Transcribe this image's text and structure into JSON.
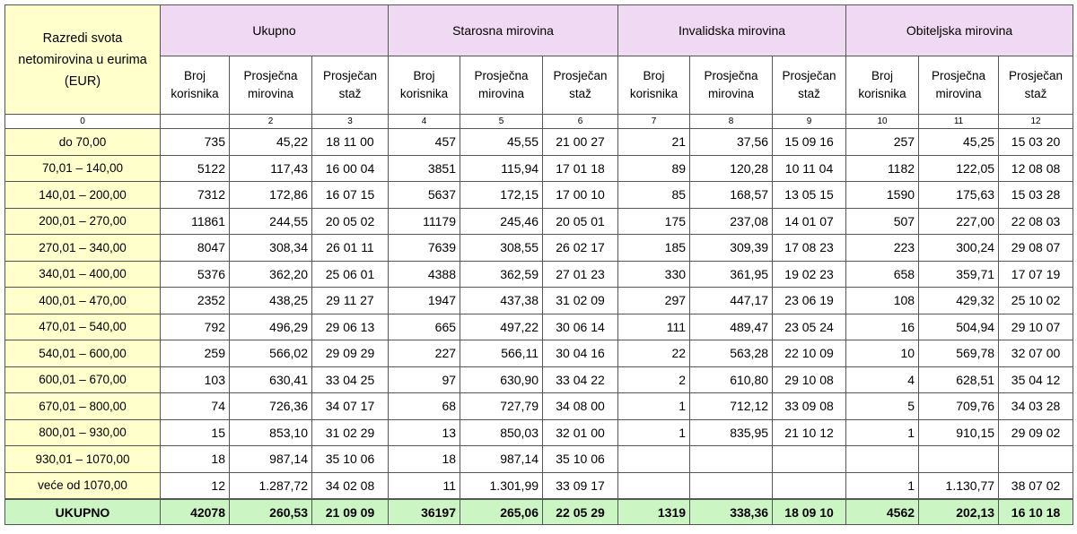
{
  "header": {
    "row_label": "Razredi svota netomirovina u eurima (EUR)",
    "groups": [
      "Ukupno",
      "Starosna mirovina",
      "Invalidska mirovina",
      "Obiteljska mirovina"
    ],
    "subheaders": [
      "Broj korisnika",
      "Prosječna mirovina",
      "Prosječan staž",
      "Broj korisnika",
      "Prosječna mirovina",
      "Prosječan staž",
      "Broj korisnika",
      "Prosječna mirovina",
      "Prosječan staž",
      "Broj korisnika",
      "Prosječna mirovina",
      "Prosječan staž"
    ]
  },
  "column_numbers": [
    0,
    null,
    2,
    3,
    4,
    5,
    6,
    7,
    8,
    9,
    10,
    11,
    12
  ],
  "rows": [
    {
      "class": "do 70,00",
      "cells": [
        735,
        "45,22",
        "18 11 00",
        457,
        "45,55",
        "21 00 27",
        21,
        "37,56",
        "15 09 16",
        257,
        "45,25",
        "15 03 20"
      ]
    },
    {
      "class": "70,01  –  140,00",
      "cells": [
        5122,
        "117,43",
        "16 00 04",
        3851,
        "115,94",
        "17 01 18",
        89,
        "120,28",
        "10 11 04",
        1182,
        "122,05",
        "12 08 08"
      ]
    },
    {
      "class": "140,01  –  200,00",
      "cells": [
        7312,
        "172,86",
        "16 07 15",
        5637,
        "172,15",
        "17 00 10",
        85,
        "168,57",
        "13 05 15",
        1590,
        "175,63",
        "15 03 28"
      ]
    },
    {
      "class": "200,01  –  270,00",
      "cells": [
        11861,
        "244,55",
        "20 05 02",
        11179,
        "245,46",
        "20 05 01",
        175,
        "237,08",
        "14 01 07",
        507,
        "227,00",
        "22 08 03"
      ]
    },
    {
      "class": "270,01  –  340,00",
      "cells": [
        8047,
        "308,34",
        "26 01 11",
        7639,
        "308,55",
        "26 02 17",
        185,
        "309,39",
        "17 08 23",
        223,
        "300,24",
        "29 08 07"
      ]
    },
    {
      "class": "340,01  –  400,00",
      "cells": [
        5376,
        "362,20",
        "25 06 01",
        4388,
        "362,59",
        "27 01 23",
        330,
        "361,95",
        "19 02 23",
        658,
        "359,71",
        "17 07 19"
      ]
    },
    {
      "class": "400,01  –  470,00",
      "cells": [
        2352,
        "438,25",
        "29 11 27",
        1947,
        "437,38",
        "31 02 09",
        297,
        "447,17",
        "23 06 19",
        108,
        "429,32",
        "25 10 02"
      ]
    },
    {
      "class": "470,01  –  540,00",
      "cells": [
        792,
        "496,29",
        "29 06 13",
        665,
        "497,22",
        "30 06 14",
        111,
        "489,47",
        "23 05 24",
        16,
        "504,94",
        "29 10 07"
      ]
    },
    {
      "class": "540,01  –  600,00",
      "cells": [
        259,
        "566,02",
        "29 09 29",
        227,
        "566,11",
        "30 04 16",
        22,
        "563,28",
        "22 10 09",
        10,
        "569,78",
        "32 07 00"
      ]
    },
    {
      "class": "600,01  –  670,00",
      "cells": [
        103,
        "630,41",
        "33 04 25",
        97,
        "630,90",
        "33 04 22",
        2,
        "610,80",
        "29 10 08",
        4,
        "628,51",
        "35 04 12"
      ]
    },
    {
      "class": "670,01  –  800,00",
      "cells": [
        74,
        "726,36",
        "34 07 17",
        68,
        "727,79",
        "34 08 00",
        1,
        "712,12",
        "33 09 08",
        5,
        "709,76",
        "34 03 28"
      ]
    },
    {
      "class": "800,01  –  930,00",
      "cells": [
        15,
        "853,10",
        "31 02 29",
        13,
        "850,03",
        "32 01 00",
        1,
        "835,95",
        "21 10 12",
        1,
        "910,15",
        "29 09 02"
      ]
    },
    {
      "class": "930,01  –  1070,00",
      "cells": [
        18,
        "987,14",
        "35 10 06",
        18,
        "987,14",
        "35 10 06",
        null,
        null,
        null,
        null,
        null,
        null
      ]
    },
    {
      "class": "veće od 1070,00",
      "cells": [
        12,
        "1.287,72",
        "34 02 08",
        11,
        "1.301,99",
        "33 09 17",
        null,
        null,
        null,
        1,
        "1.130,77",
        "38 07 02"
      ]
    }
  ],
  "total": {
    "label": "UKUPNO",
    "cells": [
      42078,
      "260,53",
      "21 09 09",
      36197,
      "265,06",
      "22 05 29",
      1319,
      "338,36",
      "18 09 10",
      4562,
      "202,13",
      "16 10 18"
    ]
  }
}
